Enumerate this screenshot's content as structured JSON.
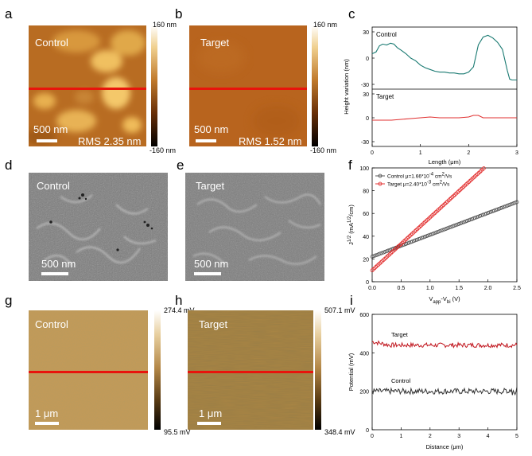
{
  "panels": {
    "a": {
      "letter": "a",
      "sample": "Control",
      "scale": "500 nm",
      "rms": "RMS 2.35 nm"
    },
    "b": {
      "letter": "b",
      "sample": "Target",
      "scale": "500 nm",
      "rms": "RMS 1.52 nm"
    },
    "afm_colorbar": {
      "top": "160 nm",
      "bottom": "-160 nm"
    },
    "c": {
      "letter": "c"
    },
    "d": {
      "letter": "d",
      "sample": "Control",
      "scale": "500 nm"
    },
    "e": {
      "letter": "e",
      "sample": "Target",
      "scale": "500 nm"
    },
    "f": {
      "letter": "f"
    },
    "g": {
      "letter": "g",
      "sample": "Control",
      "scale": "1 μm",
      "cb_top": "274.4 mV",
      "cb_bottom": "95.5 mV"
    },
    "h": {
      "letter": "h",
      "sample": "Target",
      "scale": "1 μm",
      "cb_top": "507.1 mV",
      "cb_bottom": "348.4 mV"
    },
    "i": {
      "letter": "i"
    }
  },
  "colors": {
    "afm": "#b8641e",
    "control_line_c": "#1a7a72",
    "target_line_c": "#e03030",
    "control_f": "#444444",
    "target_f": "#e02020",
    "target_i": "#c0141c",
    "control_i": "#333333",
    "redline": "#e8140c"
  },
  "chart_data": [
    {
      "id": "c",
      "type": "line",
      "xlabel": "Length (μm)",
      "ylabel": "Height variation (nm)",
      "xlim": [
        0,
        3
      ],
      "xticks": [
        "0",
        "1",
        "2",
        "3"
      ],
      "subplots": [
        {
          "name": "Control",
          "ylim": [
            -30,
            30
          ],
          "yticks": [
            "30",
            "0",
            "-30"
          ],
          "x": [
            0,
            0.08,
            0.15,
            0.22,
            0.3,
            0.38,
            0.45,
            0.52,
            0.6,
            0.7,
            0.8,
            0.9,
            1.0,
            1.1,
            1.2,
            1.3,
            1.4,
            1.5,
            1.6,
            1.7,
            1.8,
            1.9,
            2.0,
            2.1,
            2.2,
            2.3,
            2.4,
            2.5,
            2.6,
            2.7,
            2.8,
            2.85,
            2.9,
            3.0
          ],
          "y": [
            5,
            7,
            14,
            16,
            15,
            17,
            16,
            12,
            9,
            5,
            0,
            -3,
            -8,
            -11,
            -13,
            -15,
            -16,
            -16,
            -17,
            -17,
            -18,
            -18,
            -16,
            -10,
            15,
            24,
            26,
            23,
            18,
            10,
            -14,
            -24,
            -25,
            -25
          ]
        },
        {
          "name": "Target",
          "ylim": [
            -30,
            30
          ],
          "yticks": [
            "30",
            "0",
            "-30"
          ],
          "x": [
            0,
            0.2,
            0.4,
            0.6,
            0.8,
            1.0,
            1.2,
            1.4,
            1.6,
            1.8,
            2.0,
            2.1,
            2.2,
            2.3,
            2.4,
            2.5,
            2.7,
            3.0
          ],
          "y": [
            -3,
            -3,
            -3,
            -2,
            -1,
            0,
            1,
            0,
            0,
            0,
            1,
            3,
            3,
            0,
            0,
            0,
            0,
            0
          ]
        }
      ]
    },
    {
      "id": "f",
      "type": "scatter",
      "xlabel": "V",
      "xlabel_sub": "app",
      "xlabel_mid": "-V",
      "xlabel_sub2": "bi",
      "xlabel_end": " (V)",
      "ylabel": "J",
      "ylabel_sup": "1/2",
      "ylabel_end": " (mA",
      "ylabel_sup2": "1/2",
      "ylabel_end2": "/cm)",
      "xlim": [
        0,
        2.5
      ],
      "ylim": [
        0,
        100
      ],
      "xticks": [
        "0.0",
        "0.5",
        "1.0",
        "1.5",
        "2.0",
        "2.5"
      ],
      "yticks": [
        "0",
        "20",
        "40",
        "60",
        "80",
        "100"
      ],
      "series": [
        {
          "name": "Control",
          "label": "μ=1.66*10",
          "exp": "-4",
          "unit": " cm",
          "unit_sup": "2",
          "unit_end": "/Vs",
          "y0": 22,
          "slope": 19.2,
          "x_end": 2.5
        },
        {
          "name": "Target",
          "label": "μ=2.40*10",
          "exp": "-3",
          "unit": " cm",
          "unit_sup": "2",
          "unit_end": "/Vs",
          "y0": 10,
          "slope": 46.5,
          "x_end": 1.95
        }
      ]
    },
    {
      "id": "i",
      "type": "line",
      "xlabel": "Distance (μm)",
      "ylabel": "Potential (mV)",
      "xlim": [
        0,
        5
      ],
      "ylim": [
        0,
        600
      ],
      "xticks": [
        "0",
        "1",
        "2",
        "3",
        "4",
        "5"
      ],
      "yticks": [
        "0",
        "200",
        "400",
        "600"
      ],
      "series": [
        {
          "name": "Target",
          "mean": 440,
          "amp": 12
        },
        {
          "name": "Control",
          "mean": 200,
          "amp": 15
        }
      ]
    }
  ]
}
